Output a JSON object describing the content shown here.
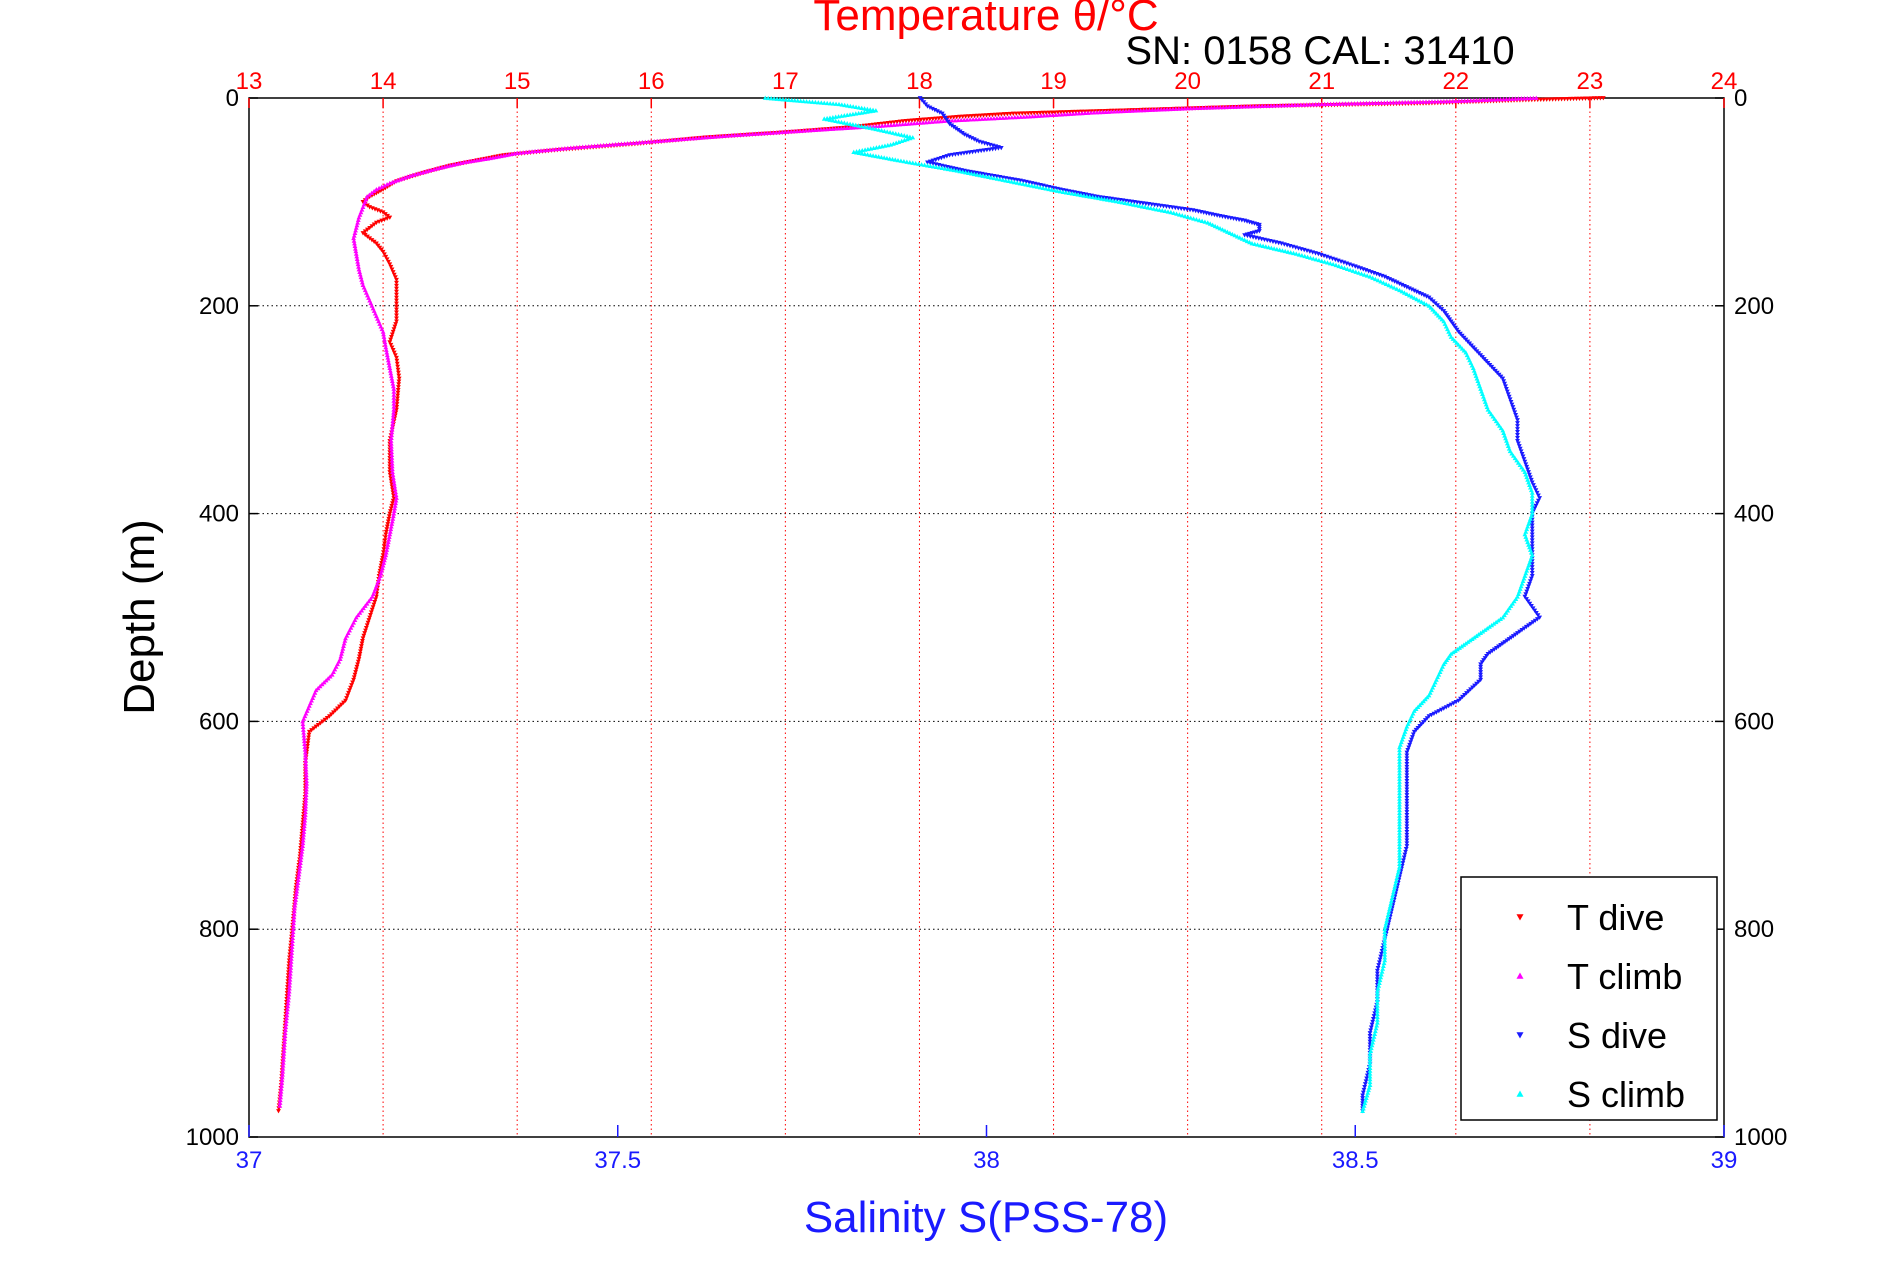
{
  "chart_data": {
    "type": "scatter",
    "title": "Temperature θ/°C",
    "annotation": "SN: 0158  CAL: 31410",
    "xlabel_bottom": "Salinity S(PSS-78)",
    "xlabel_top": "Temperature θ/°C",
    "ylabel": "Depth (m)",
    "x_bottom": {
      "range": [
        37,
        39
      ],
      "ticks": [
        "37",
        "37.5",
        "38",
        "38.5",
        "39"
      ],
      "color": "#1a1aff"
    },
    "x_top": {
      "range": [
        13,
        24
      ],
      "ticks": [
        "13",
        "14",
        "15",
        "16",
        "17",
        "18",
        "19",
        "20",
        "21",
        "22",
        "23",
        "24"
      ],
      "color": "#ff0000"
    },
    "y": {
      "range": [
        0,
        1000
      ],
      "reversed": true,
      "ticks": [
        "0",
        "200",
        "400",
        "600",
        "800",
        "1000"
      ]
    },
    "grid": "dotted",
    "legend": {
      "position": "bottom-right"
    },
    "series": [
      {
        "name": "T dive",
        "axis": "temperature",
        "color": "#ff0000",
        "marker": "triangle-down",
        "points": [
          [
            23.1,
            0
          ],
          [
            22.5,
            2
          ],
          [
            21.8,
            5
          ],
          [
            20.5,
            8
          ],
          [
            19.5,
            12
          ],
          [
            18.7,
            15
          ],
          [
            18.3,
            18
          ],
          [
            17.9,
            22
          ],
          [
            17.5,
            28
          ],
          [
            17,
            33
          ],
          [
            16.4,
            38
          ],
          [
            15.9,
            44
          ],
          [
            15.3,
            50
          ],
          [
            14.9,
            55
          ],
          [
            14.7,
            60
          ],
          [
            14.5,
            65
          ],
          [
            14.3,
            72
          ],
          [
            14.1,
            80
          ],
          [
            14,
            88
          ],
          [
            13.9,
            95
          ],
          [
            13.85,
            100
          ],
          [
            13.9,
            105
          ],
          [
            14,
            110
          ],
          [
            14.05,
            115
          ],
          [
            13.95,
            120
          ],
          [
            13.9,
            125
          ],
          [
            13.85,
            130
          ],
          [
            13.9,
            135
          ],
          [
            13.95,
            140
          ],
          [
            14,
            148
          ],
          [
            14.05,
            160
          ],
          [
            14.1,
            175
          ],
          [
            14.1,
            195
          ],
          [
            14.1,
            215
          ],
          [
            14.05,
            235
          ],
          [
            14.1,
            250
          ],
          [
            14.12,
            270
          ],
          [
            14.1,
            300
          ],
          [
            14.05,
            330
          ],
          [
            14.05,
            360
          ],
          [
            14.08,
            385
          ],
          [
            14.05,
            400
          ],
          [
            14.02,
            420
          ],
          [
            14,
            440
          ],
          [
            13.97,
            460
          ],
          [
            13.95,
            480
          ],
          [
            13.9,
            500
          ],
          [
            13.85,
            520
          ],
          [
            13.82,
            540
          ],
          [
            13.78,
            560
          ],
          [
            13.72,
            580
          ],
          [
            13.6,
            595
          ],
          [
            13.45,
            610
          ],
          [
            13.42,
            640
          ],
          [
            13.42,
            670
          ],
          [
            13.4,
            700
          ],
          [
            13.38,
            730
          ],
          [
            13.35,
            760
          ],
          [
            13.33,
            790
          ],
          [
            13.3,
            830
          ],
          [
            13.28,
            870
          ],
          [
            13.26,
            910
          ],
          [
            13.24,
            950
          ],
          [
            13.22,
            975
          ]
        ]
      },
      {
        "name": "T climb",
        "axis": "temperature",
        "color": "#ff00ff",
        "marker": "triangle-up",
        "points": [
          [
            22.6,
            0
          ],
          [
            22,
            3
          ],
          [
            21,
            6
          ],
          [
            20,
            10
          ],
          [
            19.3,
            14
          ],
          [
            18.8,
            18
          ],
          [
            18.2,
            22
          ],
          [
            17.7,
            27
          ],
          [
            17.2,
            31
          ],
          [
            16.6,
            36
          ],
          [
            16,
            42
          ],
          [
            15.4,
            48
          ],
          [
            15,
            53
          ],
          [
            14.8,
            58
          ],
          [
            14.6,
            62
          ],
          [
            14.4,
            68
          ],
          [
            14.2,
            75
          ],
          [
            14.05,
            82
          ],
          [
            13.95,
            88
          ],
          [
            13.88,
            95
          ],
          [
            13.85,
            105
          ],
          [
            13.82,
            115
          ],
          [
            13.8,
            125
          ],
          [
            13.78,
            135
          ],
          [
            13.8,
            150
          ],
          [
            13.82,
            165
          ],
          [
            13.85,
            180
          ],
          [
            13.9,
            195
          ],
          [
            13.95,
            210
          ],
          [
            14,
            225
          ],
          [
            14.02,
            240
          ],
          [
            14.05,
            260
          ],
          [
            14.08,
            280
          ],
          [
            14.08,
            300
          ],
          [
            14.06,
            330
          ],
          [
            14.07,
            360
          ],
          [
            14.1,
            385
          ],
          [
            14.08,
            400
          ],
          [
            14.05,
            420
          ],
          [
            14.02,
            440
          ],
          [
            13.98,
            460
          ],
          [
            13.92,
            480
          ],
          [
            13.8,
            500
          ],
          [
            13.72,
            520
          ],
          [
            13.68,
            540
          ],
          [
            13.62,
            555
          ],
          [
            13.5,
            570
          ],
          [
            13.45,
            585
          ],
          [
            13.4,
            600
          ],
          [
            13.42,
            630
          ],
          [
            13.43,
            660
          ],
          [
            13.42,
            690
          ],
          [
            13.4,
            720
          ],
          [
            13.37,
            750
          ],
          [
            13.34,
            780
          ],
          [
            13.32,
            820
          ],
          [
            13.3,
            860
          ],
          [
            13.27,
            900
          ],
          [
            13.25,
            940
          ],
          [
            13.23,
            970
          ]
        ]
      },
      {
        "name": "S dive",
        "axis": "salinity",
        "color": "#1a1aff",
        "marker": "triangle-down",
        "points": [
          [
            37.91,
            0
          ],
          [
            37.92,
            8
          ],
          [
            37.94,
            15
          ],
          [
            37.95,
            25
          ],
          [
            37.97,
            35
          ],
          [
            37.99,
            42
          ],
          [
            38.02,
            48
          ],
          [
            37.95,
            55
          ],
          [
            37.92,
            62
          ],
          [
            37.97,
            70
          ],
          [
            38.05,
            80
          ],
          [
            38.1,
            88
          ],
          [
            38.15,
            95
          ],
          [
            38.22,
            102
          ],
          [
            38.28,
            108
          ],
          [
            38.32,
            114
          ],
          [
            38.35,
            118
          ],
          [
            38.37,
            122
          ],
          [
            38.37,
            128
          ],
          [
            38.35,
            132
          ],
          [
            38.4,
            140
          ],
          [
            38.45,
            150
          ],
          [
            38.5,
            162
          ],
          [
            38.54,
            172
          ],
          [
            38.57,
            182
          ],
          [
            38.6,
            192
          ],
          [
            38.62,
            205
          ],
          [
            38.63,
            215
          ],
          [
            38.64,
            225
          ],
          [
            38.66,
            240
          ],
          [
            38.68,
            255
          ],
          [
            38.7,
            270
          ],
          [
            38.71,
            290
          ],
          [
            38.72,
            310
          ],
          [
            38.72,
            330
          ],
          [
            38.73,
            350
          ],
          [
            38.74,
            370
          ],
          [
            38.75,
            385
          ],
          [
            38.74,
            400
          ],
          [
            38.74,
            420
          ],
          [
            38.74,
            440
          ],
          [
            38.74,
            460
          ],
          [
            38.73,
            480
          ],
          [
            38.75,
            500
          ],
          [
            38.72,
            515
          ],
          [
            38.7,
            525
          ],
          [
            38.68,
            535
          ],
          [
            38.67,
            545
          ],
          [
            38.67,
            560
          ],
          [
            38.64,
            580
          ],
          [
            38.6,
            595
          ],
          [
            38.58,
            610
          ],
          [
            38.57,
            630
          ],
          [
            38.57,
            660
          ],
          [
            38.57,
            690
          ],
          [
            38.57,
            720
          ],
          [
            38.56,
            750
          ],
          [
            38.55,
            780
          ],
          [
            38.54,
            810
          ],
          [
            38.53,
            840
          ],
          [
            38.53,
            870
          ],
          [
            38.52,
            900
          ],
          [
            38.52,
            930
          ],
          [
            38.51,
            960
          ],
          [
            38.51,
            975
          ]
        ]
      },
      {
        "name": "S climb",
        "axis": "salinity",
        "color": "#00ffff",
        "marker": "triangle-up",
        "points": [
          [
            37.7,
            0
          ],
          [
            37.8,
            6
          ],
          [
            37.85,
            12
          ],
          [
            37.78,
            20
          ],
          [
            37.85,
            30
          ],
          [
            37.9,
            38
          ],
          [
            37.87,
            45
          ],
          [
            37.82,
            52
          ],
          [
            37.88,
            60
          ],
          [
            37.96,
            70
          ],
          [
            38.03,
            80
          ],
          [
            38.1,
            90
          ],
          [
            38.18,
            100
          ],
          [
            38.25,
            110
          ],
          [
            38.3,
            120
          ],
          [
            38.33,
            130
          ],
          [
            38.36,
            140
          ],
          [
            38.42,
            150
          ],
          [
            38.47,
            160
          ],
          [
            38.52,
            172
          ],
          [
            38.56,
            185
          ],
          [
            38.6,
            200
          ],
          [
            38.62,
            215
          ],
          [
            38.63,
            230
          ],
          [
            38.65,
            245
          ],
          [
            38.66,
            260
          ],
          [
            38.67,
            280
          ],
          [
            38.68,
            300
          ],
          [
            38.7,
            320
          ],
          [
            38.71,
            340
          ],
          [
            38.73,
            360
          ],
          [
            38.74,
            380
          ],
          [
            38.74,
            400
          ],
          [
            38.73,
            420
          ],
          [
            38.74,
            440
          ],
          [
            38.73,
            460
          ],
          [
            38.72,
            480
          ],
          [
            38.7,
            500
          ],
          [
            38.67,
            515
          ],
          [
            38.65,
            525
          ],
          [
            38.63,
            535
          ],
          [
            38.62,
            545
          ],
          [
            38.61,
            560
          ],
          [
            38.6,
            575
          ],
          [
            38.58,
            590
          ],
          [
            38.57,
            605
          ],
          [
            38.56,
            625
          ],
          [
            38.56,
            650
          ],
          [
            38.56,
            680
          ],
          [
            38.56,
            710
          ],
          [
            38.56,
            740
          ],
          [
            38.55,
            770
          ],
          [
            38.54,
            800
          ],
          [
            38.54,
            830
          ],
          [
            38.53,
            860
          ],
          [
            38.53,
            890
          ],
          [
            38.52,
            920
          ],
          [
            38.52,
            950
          ],
          [
            38.51,
            975
          ]
        ]
      }
    ]
  }
}
